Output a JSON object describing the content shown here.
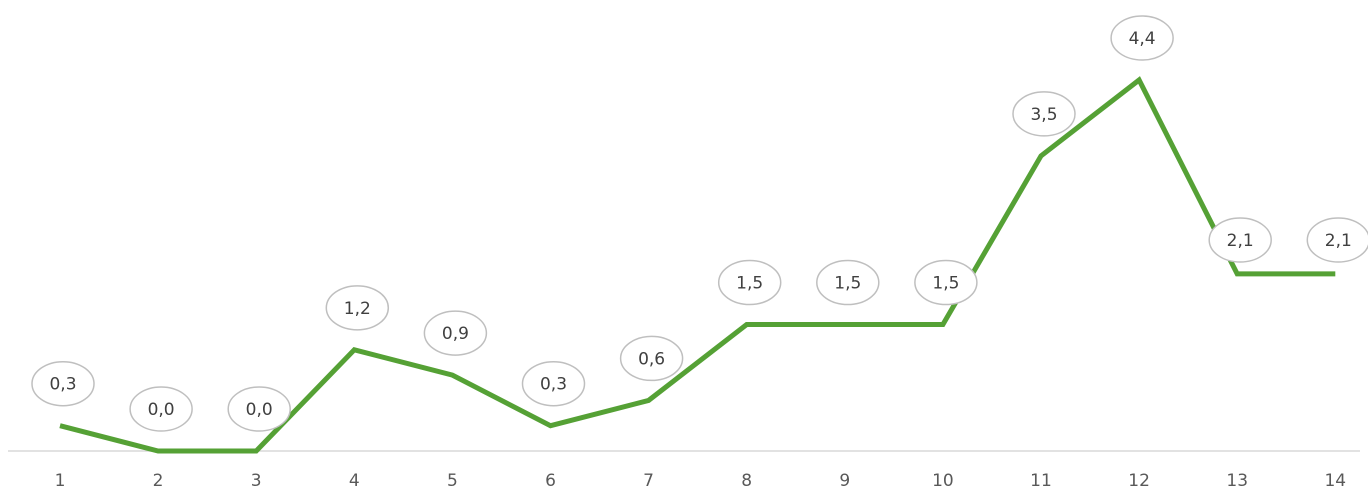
{
  "chart_data": {
    "type": "line",
    "categories": [
      "1",
      "2",
      "3",
      "4",
      "5",
      "6",
      "7",
      "8",
      "9",
      "10",
      "11",
      "12",
      "13",
      "14"
    ],
    "series": [
      {
        "values": [
          0.3,
          0.0,
          0.0,
          1.2,
          0.9,
          0.3,
          0.6,
          1.5,
          1.5,
          1.5,
          3.5,
          4.4,
          2.1,
          2.1
        ],
        "labels": [
          "0,3",
          "0,0",
          "0,0",
          "1,2",
          "0,9",
          "0,3",
          "0,6",
          "1,5",
          "1,5",
          "1,5",
          "3,5",
          "4,4",
          "2,1",
          "2,1"
        ],
        "color": "#55a135"
      }
    ],
    "ylim": [
      0,
      4.5
    ],
    "grid": false,
    "axis_color": "#d9d9d9"
  }
}
